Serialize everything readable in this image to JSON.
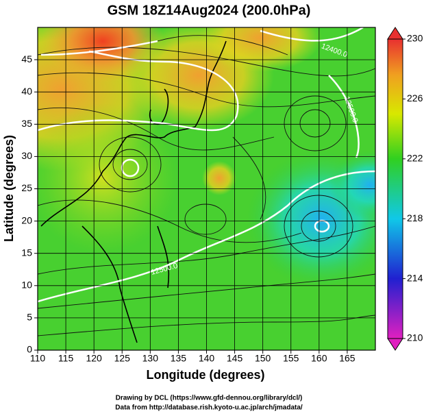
{
  "chart_data": {
    "type": "streamline-map",
    "title": "GSM 18Z14Aug2024 (200.0hPa)",
    "x_label": "Longitude (degrees)",
    "y_label": "Latitude  (degrees)",
    "xlim": [
      110,
      170
    ],
    "ylim": [
      0,
      50
    ],
    "xticks": [
      110,
      115,
      120,
      125,
      130,
      135,
      140,
      145,
      150,
      155,
      160,
      165
    ],
    "yticks": [
      0,
      5,
      10,
      15,
      20,
      25,
      30,
      35,
      40,
      45
    ],
    "grid": true,
    "colorbar_lim": [
      210,
      230
    ],
    "colorbar_ticks": [
      210,
      214,
      218,
      222,
      226,
      230
    ],
    "contour_labels": [
      "12400.0",
      "12500.0",
      "12500.0"
    ],
    "credits": [
      "Drawing by DCL (https://www.gfd-dennou.org/library/dcl/)",
      "Data from http://database.rish.kyoto-u.ac.jp/arch/jmadata/"
    ]
  }
}
